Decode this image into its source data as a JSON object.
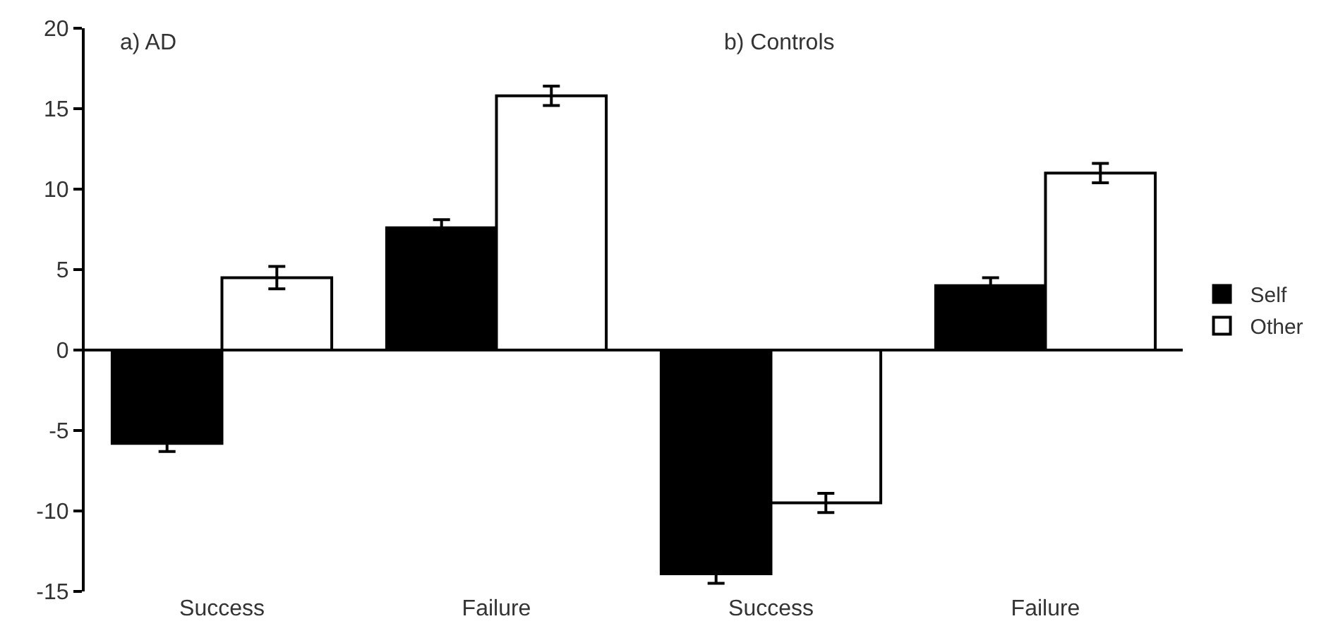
{
  "chart_data": {
    "type": "bar",
    "categories": [
      "Success",
      "Failure",
      "Success",
      "Failure"
    ],
    "series": [
      {
        "name": "Self",
        "color": "#000000",
        "values": [
          -5.8,
          7.6,
          -13.9,
          4.0
        ],
        "errors": [
          0.5,
          0.5,
          0.6,
          0.5
        ]
      },
      {
        "name": "Other",
        "color": "#ffffff",
        "values": [
          4.5,
          15.8,
          -9.5,
          11.0
        ],
        "errors": [
          0.7,
          0.6,
          0.6,
          0.6
        ]
      }
    ],
    "annotations": [
      "a) AD",
      "b) Controls"
    ],
    "ylim": [
      -15,
      20
    ],
    "yticks": [
      -15,
      -10,
      -5,
      0,
      5,
      10,
      15,
      20
    ],
    "legend": "right"
  }
}
